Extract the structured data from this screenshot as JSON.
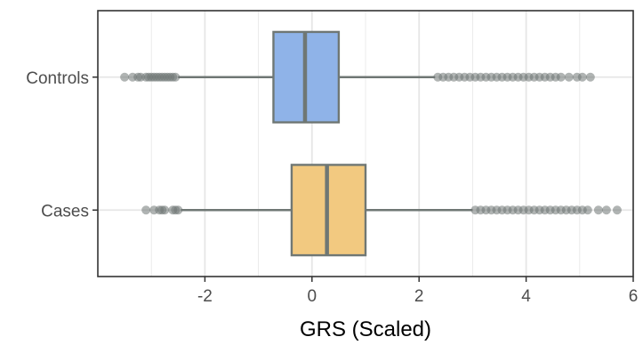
{
  "chart_data": {
    "type": "boxplot",
    "orientation": "horizontal",
    "xlabel": "GRS (Scaled)",
    "ylabel": "",
    "xlim": [
      -4.0,
      6.0
    ],
    "x_ticks": [
      -2,
      0,
      2,
      4,
      6
    ],
    "x_tick_labels": [
      "-2",
      "0",
      "2",
      "4",
      "6"
    ],
    "grid": true,
    "categories": [
      "Controls",
      "Cases"
    ],
    "boxes": [
      {
        "name": "Controls",
        "fill_color": "#8fb3e8",
        "whisker_low": -2.5,
        "q1": -0.72,
        "median": -0.13,
        "q3": 0.5,
        "whisker_high": 2.3,
        "outliers": [
          -3.5,
          -3.35,
          -3.25,
          -3.2,
          -3.1,
          -3.05,
          -3.0,
          -2.95,
          -2.9,
          -2.85,
          -2.8,
          -2.75,
          -2.7,
          -2.65,
          -2.6,
          -2.55,
          2.35,
          2.45,
          2.55,
          2.65,
          2.75,
          2.85,
          2.95,
          3.05,
          3.15,
          3.25,
          3.35,
          3.45,
          3.55,
          3.65,
          3.75,
          3.85,
          3.95,
          4.05,
          4.15,
          4.25,
          4.35,
          4.45,
          4.55,
          4.65,
          4.8,
          4.95,
          5.05,
          5.2
        ]
      },
      {
        "name": "Cases",
        "fill_color": "#f2c980",
        "whisker_low": -2.45,
        "q1": -0.38,
        "median": 0.28,
        "q3": 1.0,
        "whisker_high": 3.0,
        "outliers": [
          -3.1,
          -2.95,
          -2.85,
          -2.8,
          -2.75,
          -2.6,
          -2.55,
          -2.5,
          3.05,
          3.15,
          3.25,
          3.35,
          3.45,
          3.55,
          3.65,
          3.75,
          3.85,
          3.95,
          4.05,
          4.15,
          4.25,
          4.35,
          4.45,
          4.55,
          4.65,
          4.75,
          4.85,
          4.95,
          5.05,
          5.15,
          5.35,
          5.5,
          5.7
        ]
      }
    ],
    "colors": {
      "outlier": "#6f7774",
      "line": "#6f7774",
      "grid": "#e6e6e6",
      "panel_border": "#333333"
    }
  }
}
